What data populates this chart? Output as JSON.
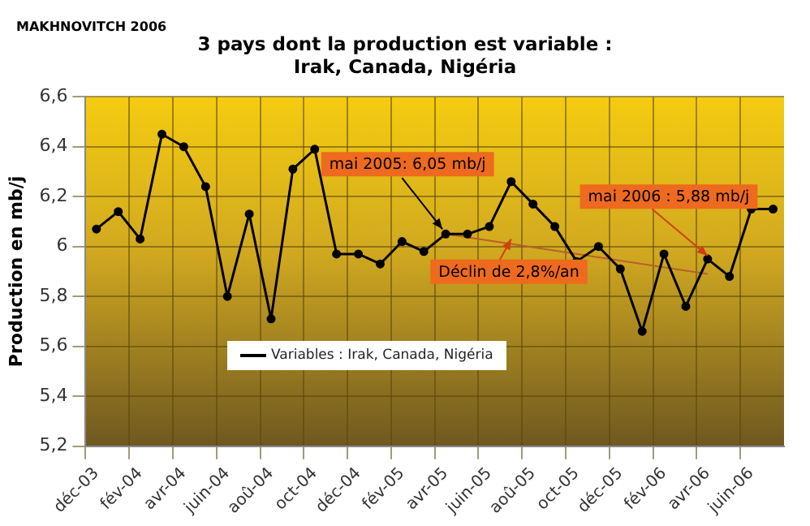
{
  "chart_data": {
    "type": "line",
    "title": "3 pays dont la production est variable :\nIrak, Canada, Nigéria",
    "ylabel": "Production en mb/j",
    "categories": [
      "déc-03",
      null,
      "fév-04",
      null,
      "avr-04",
      null,
      "juin-04",
      null,
      "aoû-04",
      null,
      "oct-04",
      null,
      "déc-04",
      null,
      "fév-05",
      null,
      "avr-05",
      null,
      "juin-05",
      null,
      "aoû-05",
      null,
      "oct-05",
      null,
      "déc-05",
      null,
      "fév-06",
      null,
      "avr-06",
      null,
      "juin-06",
      null
    ],
    "series": [
      {
        "name": "Variables : Irak, Canada, Nigéria",
        "color": "#000000",
        "values": [
          6.07,
          6.14,
          6.03,
          6.45,
          6.4,
          6.24,
          5.8,
          6.13,
          5.71,
          6.31,
          6.39,
          5.97,
          5.97,
          5.93,
          6.02,
          5.98,
          6.05,
          6.05,
          6.08,
          6.26,
          6.17,
          6.08,
          5.94,
          6.0,
          5.91,
          5.66,
          5.97,
          5.76,
          5.95,
          5.88,
          6.15,
          6.15
        ]
      },
      {
        "type": "line",
        "color": "#b8602a",
        "marker": "none",
        "values": [
          null,
          null,
          null,
          null,
          null,
          null,
          null,
          null,
          null,
          null,
          null,
          null,
          null,
          null,
          null,
          null,
          6.05,
          null,
          null,
          null,
          null,
          null,
          null,
          null,
          null,
          null,
          null,
          null,
          5.89,
          null,
          null,
          null
        ]
      }
    ],
    "ylim": [
      5.2,
      6.6
    ],
    "yticks": [
      {
        "value": 5.2,
        "label": "5,2"
      },
      {
        "value": 5.4,
        "label": "5,4"
      },
      {
        "value": 5.6,
        "label": "5,6"
      },
      {
        "value": 5.8,
        "label": "5,8"
      },
      6,
      {
        "value": 6.2,
        "label": "6,2"
      },
      {
        "value": 6.4,
        "label": "6,4"
      },
      {
        "value": 6.6,
        "label": "6,6"
      }
    ],
    "grid": true,
    "legend": "bottom",
    "marker": "circle",
    "annotations": [
      "MAKHNOVITCH 2006",
      {
        "text": "mai 2005: 6,05 mb/j",
        "x": "avr-05",
        "y": 6.05
      },
      {
        "text": "mai 2006 : 5,88 mb/j",
        "x": "avr-06",
        "y": 5.95
      },
      "Déclin de 2,8%/an"
    ]
  }
}
